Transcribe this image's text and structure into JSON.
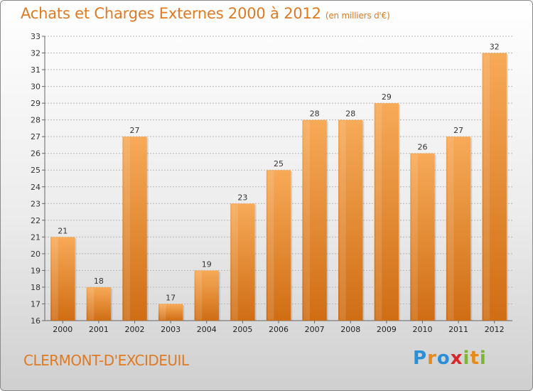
{
  "header": {
    "title": "Achats et Charges Externes 2000 à 2012",
    "subtitle": "(en milliers d'€)"
  },
  "footer": {
    "city": "CLERMONT-D'EXCIDEUIL",
    "logo": {
      "text": "Proxiti",
      "letters": [
        {
          "ch": "P",
          "color": "#2b8fd6"
        },
        {
          "ch": "r",
          "color": "#e88a1a"
        },
        {
          "ch": "o",
          "color": "#2b8fd6"
        },
        {
          "ch": "x",
          "color": "#d9262b"
        },
        {
          "ch": "i",
          "color": "#7cb82f"
        },
        {
          "ch": "t",
          "color": "#e88a1a"
        },
        {
          "ch": "i",
          "color": "#7cb82f"
        }
      ]
    }
  },
  "chart_data": {
    "type": "bar",
    "title": "Achats et Charges Externes 2000 à 2012",
    "subtitle": "(en milliers d'€)",
    "categories": [
      "2000",
      "2001",
      "2002",
      "2003",
      "2004",
      "2005",
      "2006",
      "2007",
      "2008",
      "2009",
      "2010",
      "2011",
      "2012"
    ],
    "values": [
      21,
      18,
      27,
      17,
      19,
      23,
      25,
      28,
      28,
      29,
      26,
      27,
      32
    ],
    "ylim": [
      16,
      33
    ],
    "yticks": [
      16,
      17,
      18,
      19,
      20,
      21,
      22,
      23,
      24,
      25,
      26,
      27,
      28,
      29,
      30,
      31,
      32,
      33
    ],
    "grid": true,
    "bar_color": "#f0922e",
    "bar_color_light": "#f7aa58",
    "bar_color_dark": "#cf6d14"
  }
}
